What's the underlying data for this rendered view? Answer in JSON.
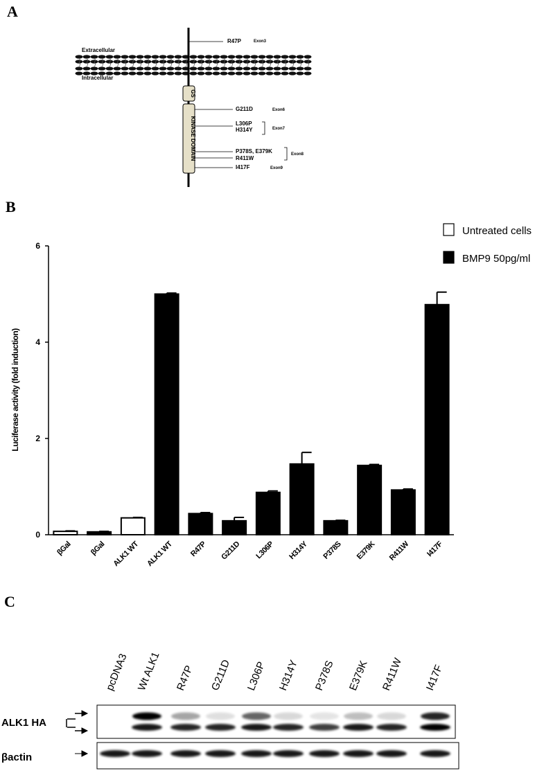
{
  "panels": {
    "a": "A",
    "b": "B",
    "c": "C"
  },
  "diagram": {
    "extracellular": "Extracellular",
    "intracellular": "Intracellular",
    "gs": "GS",
    "kinase_domain": "KINASE DOMAIN",
    "mutations": [
      "R47P",
      "G211D",
      "L306P",
      "H314Y",
      "P378S, E379K",
      "R411W",
      "I417F"
    ],
    "exons": [
      "Exon3",
      "Exon6",
      "Exon7",
      "Exon8",
      "Exon9"
    ]
  },
  "chart_data": {
    "type": "bar",
    "y_label": "Luciferase activity (fold induction)",
    "categories": [
      "βGal",
      "βGal",
      "ALK1 WT",
      "ALK1 WT",
      "R47P",
      "G211D",
      "L306P",
      "H314Y",
      "P378S",
      "E379K",
      "R411W",
      "I417F"
    ],
    "series": [
      {
        "name": "Untreated cells",
        "color": "#ffffff",
        "values": [
          0.07,
          null,
          0.35,
          null,
          null,
          null,
          null,
          null,
          null,
          null,
          null,
          null
        ],
        "errors": [
          0.01,
          null,
          0.01,
          null,
          null,
          null,
          null,
          null,
          null,
          null,
          null,
          null
        ]
      },
      {
        "name": "BMP9 50pg/ml",
        "color": "#000000",
        "values": [
          null,
          0.06,
          null,
          5.0,
          0.44,
          0.29,
          0.88,
          1.47,
          0.29,
          1.44,
          0.93,
          4.78
        ],
        "errors": [
          null,
          0.01,
          null,
          0.02,
          0.02,
          0.07,
          0.03,
          0.24,
          0.01,
          0.02,
          0.02,
          0.26
        ]
      }
    ],
    "ylim": [
      0,
      6
    ],
    "yticks": [
      0,
      2,
      4,
      6
    ],
    "legend": "top-right"
  },
  "blot": {
    "lanes": [
      "pcDNA3",
      "Wt ALK1",
      "R47P",
      "G211D",
      "L306P",
      "H314Y",
      "P378S",
      "E379K",
      "R411W",
      "I417F"
    ],
    "rows": [
      "ALK1 HA",
      "βactin"
    ]
  }
}
